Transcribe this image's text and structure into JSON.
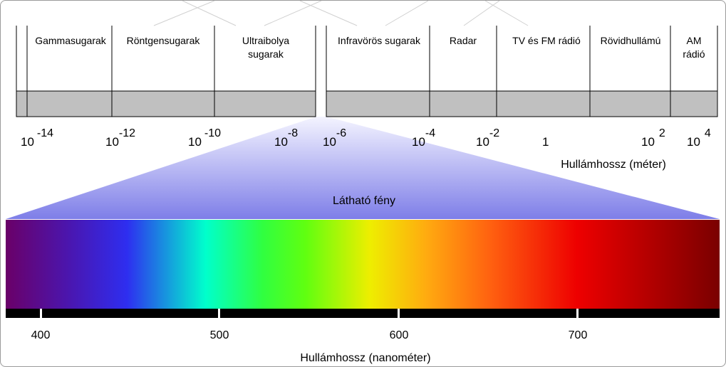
{
  "regions": [
    {
      "id": "gamma",
      "label": [
        "Gammasugarak"
      ]
    },
    {
      "id": "xray",
      "label": [
        "Röntgensugarak"
      ]
    },
    {
      "id": "uv",
      "label": [
        "Ultraibolya",
        "sugarak"
      ]
    },
    {
      "id": "ir",
      "label": [
        "Infravörös sugarak"
      ]
    },
    {
      "id": "radar",
      "label": [
        "Radar"
      ]
    },
    {
      "id": "tvfm",
      "label": [
        "TV és FM rádió"
      ]
    },
    {
      "id": "shortwave",
      "label": [
        "Rövidhullámú"
      ]
    },
    {
      "id": "am",
      "label": [
        "AM",
        "rádió"
      ]
    }
  ],
  "wavelength_ticks": [
    {
      "base": "10",
      "exp": "-14"
    },
    {
      "base": "10",
      "exp": "-12"
    },
    {
      "base": "10",
      "exp": "-10"
    },
    {
      "base": "10",
      "exp": "-8"
    },
    {
      "base": "10",
      "exp": "-6"
    },
    {
      "base": "10",
      "exp": "-4"
    },
    {
      "base": "10",
      "exp": "-2"
    },
    {
      "base": "1",
      "exp": ""
    },
    {
      "base": "10",
      "exp": "2"
    },
    {
      "base": "10",
      "exp": "4"
    }
  ],
  "wavelength_axis_label": "Hullámhossz (méter)",
  "visible_label": "Látható fény",
  "nanometer_ticks": [
    "400",
    "500",
    "600",
    "700"
  ],
  "nanometer_axis_label": "Hullámhossz (nanométer)",
  "colors": {
    "band_fill": "#c0c0c0",
    "cone_top": "#f2f2ff",
    "cone_bottom": "#7f7fe8",
    "ruler": "#000000",
    "spectrum": [
      "#6a006a",
      "#3a1fd0",
      "#2f2fef",
      "#00ffc8",
      "#30ff20",
      "#5cff10",
      "#eeee00",
      "#ffaa10",
      "#ff5000",
      "#ee0000",
      "#7a0000"
    ]
  }
}
